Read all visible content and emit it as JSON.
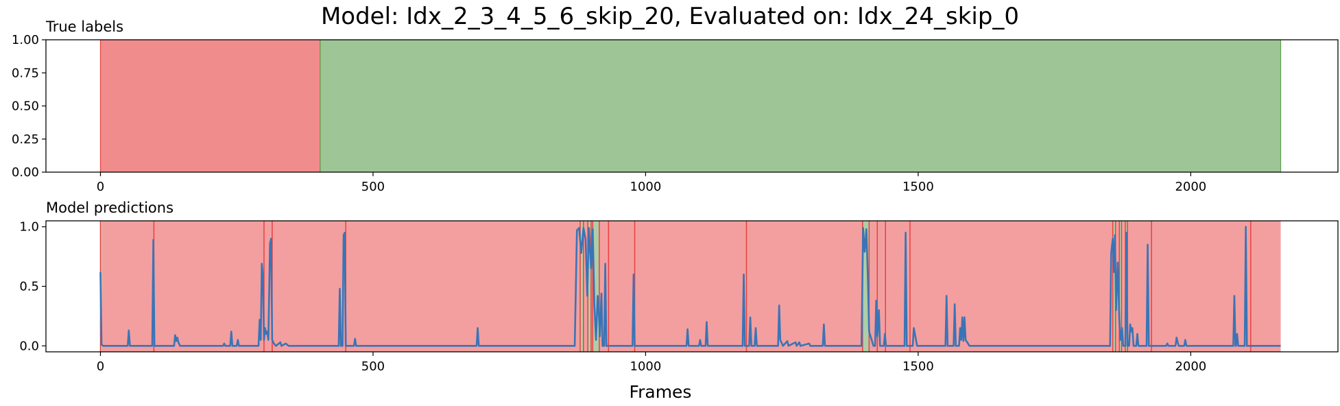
{
  "figure": {
    "title": "Model: Idx_2_3_4_5_6_skip_20, Evaluated on: Idx_24_skip_0",
    "xlabel": "Frames"
  },
  "colors": {
    "negative": "#e8403f",
    "positive": "#5d9e50",
    "line": "#3a74b6"
  },
  "chart_data": [
    {
      "type": "area",
      "title": "True labels",
      "xlim": [
        -100,
        2270
      ],
      "ylim": [
        0,
        1
      ],
      "xticks": [
        0,
        500,
        1000,
        1500,
        2000
      ],
      "yticks": [
        0.0,
        0.25,
        0.5,
        0.75,
        1.0
      ],
      "ytick_labels": [
        "0.00",
        "0.25",
        "0.50",
        "0.75",
        "1.00"
      ],
      "grid": false,
      "segments": [
        {
          "start": 0,
          "end": 403,
          "label": "negative"
        },
        {
          "start": 403,
          "end": 2165,
          "label": "positive"
        }
      ]
    },
    {
      "type": "line",
      "title": "Model predictions",
      "xlim": [
        -100,
        2270
      ],
      "ylim": [
        -0.05,
        1.05
      ],
      "xticks": [
        0,
        500,
        1000,
        1500,
        2000
      ],
      "yticks": [
        0.0,
        0.5,
        1.0
      ],
      "ytick_labels": [
        "0.0",
        "0.5",
        "1.0"
      ],
      "grid": false,
      "segments": [
        {
          "start": 0,
          "end": 3,
          "label": "positive"
        },
        {
          "start": 3,
          "end": 98,
          "label": "negative"
        },
        {
          "start": 98,
          "end": 300,
          "label": "negative"
        },
        {
          "start": 300,
          "end": 315,
          "label": "negative"
        },
        {
          "start": 315,
          "end": 450,
          "label": "negative"
        },
        {
          "start": 450,
          "end": 880,
          "label": "negative"
        },
        {
          "start": 880,
          "end": 886,
          "label": "positive"
        },
        {
          "start": 886,
          "end": 894,
          "label": "negative"
        },
        {
          "start": 894,
          "end": 900,
          "label": "positive"
        },
        {
          "start": 900,
          "end": 903,
          "label": "negative"
        },
        {
          "start": 903,
          "end": 915,
          "label": "positive"
        },
        {
          "start": 915,
          "end": 1398,
          "label": "negative"
        },
        {
          "start": 1398,
          "end": 1410,
          "label": "positive"
        },
        {
          "start": 1410,
          "end": 1857,
          "label": "negative"
        },
        {
          "start": 1857,
          "end": 1862,
          "label": "positive"
        },
        {
          "start": 1862,
          "end": 1869,
          "label": "negative"
        },
        {
          "start": 1869,
          "end": 1873,
          "label": "positive"
        },
        {
          "start": 1873,
          "end": 1880,
          "label": "negative"
        },
        {
          "start": 1880,
          "end": 1884,
          "label": "positive"
        },
        {
          "start": 1884,
          "end": 2165,
          "label": "negative"
        }
      ],
      "boundaries": [
        0,
        98,
        300,
        315,
        450,
        880,
        886,
        894,
        900,
        903,
        915,
        932,
        980,
        1185,
        1398,
        1410,
        1425,
        1440,
        1485,
        1857,
        1862,
        1869,
        1873,
        1880,
        1884,
        1928,
        2110
      ],
      "series": [
        {
          "points": [
            [
              0,
              0.62
            ],
            [
              2,
              0.01
            ],
            [
              5,
              0.0
            ],
            [
              50,
              0.0
            ],
            [
              52,
              0.13
            ],
            [
              54,
              0.0
            ],
            [
              95,
              0.0
            ],
            [
              97,
              0.89
            ],
            [
              99,
              0.0
            ],
            [
              135,
              0.0
            ],
            [
              137,
              0.09
            ],
            [
              139,
              0.04
            ],
            [
              141,
              0.07
            ],
            [
              143,
              0.03
            ],
            [
              146,
              0.0
            ],
            [
              225,
              0.0
            ],
            [
              227,
              0.02
            ],
            [
              229,
              0.0
            ],
            [
              238,
              0.0
            ],
            [
              240,
              0.12
            ],
            [
              242,
              0.0
            ],
            [
              250,
              0.0
            ],
            [
              252,
              0.05
            ],
            [
              254,
              0.0
            ],
            [
              290,
              0.0
            ],
            [
              292,
              0.22
            ],
            [
              294,
              0.05
            ],
            [
              296,
              0.69
            ],
            [
              298,
              0.58
            ],
            [
              300,
              0.05
            ],
            [
              302,
              0.15
            ],
            [
              304,
              0.1
            ],
            [
              306,
              0.12
            ],
            [
              308,
              0.05
            ],
            [
              311,
              0.86
            ],
            [
              313,
              0.9
            ],
            [
              315,
              0.05
            ],
            [
              318,
              0.02
            ],
            [
              322,
              0.0
            ],
            [
              330,
              0.03
            ],
            [
              332,
              0.0
            ],
            [
              340,
              0.02
            ],
            [
              345,
              0.0
            ],
            [
              437,
              0.0
            ],
            [
              439,
              0.48
            ],
            [
              441,
              0.0
            ],
            [
              444,
              0.0
            ],
            [
              446,
              0.93
            ],
            [
              448,
              0.95
            ],
            [
              450,
              0.0
            ],
            [
              465,
              0.0
            ],
            [
              467,
              0.06
            ],
            [
              469,
              0.0
            ],
            [
              690,
              0.0
            ],
            [
              692,
              0.15
            ],
            [
              694,
              0.0
            ],
            [
              870,
              0.0
            ],
            [
              874,
              0.97
            ],
            [
              878,
              0.99
            ],
            [
              882,
              0.78
            ],
            [
              886,
              0.99
            ],
            [
              890,
              0.89
            ],
            [
              893,
              0.42
            ],
            [
              896,
              0.99
            ],
            [
              900,
              0.65
            ],
            [
              903,
              0.98
            ],
            [
              906,
              0.35
            ],
            [
              909,
              0.05
            ],
            [
              912,
              0.42
            ],
            [
              914,
              0.3
            ],
            [
              916,
              0.08
            ],
            [
              919,
              0.44
            ],
            [
              921,
              0.0
            ],
            [
              924,
              0.0
            ],
            [
              926,
              0.69
            ],
            [
              928,
              0.0
            ],
            [
              976,
              0.0
            ],
            [
              978,
              0.6
            ],
            [
              980,
              0.0
            ],
            [
              1075,
              0.0
            ],
            [
              1077,
              0.14
            ],
            [
              1079,
              0.0
            ],
            [
              1098,
              0.0
            ],
            [
              1100,
              0.05
            ],
            [
              1102,
              0.0
            ],
            [
              1110,
              0.0
            ],
            [
              1112,
              0.2
            ],
            [
              1114,
              0.0
            ],
            [
              1178,
              0.0
            ],
            [
              1180,
              0.6
            ],
            [
              1182,
              0.0
            ],
            [
              1190,
              0.0
            ],
            [
              1192,
              0.24
            ],
            [
              1194,
              0.0
            ],
            [
              1200,
              0.0
            ],
            [
              1202,
              0.15
            ],
            [
              1204,
              0.0
            ],
            [
              1243,
              0.0
            ],
            [
              1245,
              0.34
            ],
            [
              1247,
              0.05
            ],
            [
              1252,
              0.0
            ],
            [
              1260,
              0.04
            ],
            [
              1262,
              0.0
            ],
            [
              1275,
              0.03
            ],
            [
              1277,
              0.0
            ],
            [
              1282,
              0.03
            ],
            [
              1284,
              0.0
            ],
            [
              1300,
              0.02
            ],
            [
              1302,
              0.0
            ],
            [
              1325,
              0.0
            ],
            [
              1327,
              0.18
            ],
            [
              1329,
              0.0
            ],
            [
              1396,
              0.0
            ],
            [
              1399,
              0.99
            ],
            [
              1402,
              0.79
            ],
            [
              1405,
              0.98
            ],
            [
              1408,
              0.52
            ],
            [
              1410,
              0.12
            ],
            [
              1414,
              0.06
            ],
            [
              1418,
              0.0
            ],
            [
              1421,
              0.0
            ],
            [
              1423,
              0.38
            ],
            [
              1425,
              0.08
            ],
            [
              1428,
              0.3
            ],
            [
              1430,
              0.0
            ],
            [
              1437,
              0.0
            ],
            [
              1439,
              0.1
            ],
            [
              1441,
              0.0
            ],
            [
              1475,
              0.0
            ],
            [
              1477,
              0.95
            ],
            [
              1479,
              0.0
            ],
            [
              1490,
              0.0
            ],
            [
              1492,
              0.15
            ],
            [
              1494,
              0.1
            ],
            [
              1496,
              0.05
            ],
            [
              1498,
              0.0
            ],
            [
              1550,
              0.0
            ],
            [
              1552,
              0.42
            ],
            [
              1554,
              0.0
            ],
            [
              1565,
              0.0
            ],
            [
              1567,
              0.35
            ],
            [
              1569,
              0.0
            ],
            [
              1575,
              0.0
            ],
            [
              1577,
              0.15
            ],
            [
              1579,
              0.05
            ],
            [
              1581,
              0.24
            ],
            [
              1583,
              0.04
            ],
            [
              1585,
              0.24
            ],
            [
              1587,
              0.05
            ],
            [
              1590,
              0.03
            ],
            [
              1594,
              0.0
            ],
            [
              1852,
              0.0
            ],
            [
              1854,
              0.78
            ],
            [
              1857,
              0.9
            ],
            [
              1859,
              0.62
            ],
            [
              1861,
              0.93
            ],
            [
              1863,
              0.3
            ],
            [
              1866,
              0.7
            ],
            [
              1869,
              0.22
            ],
            [
              1871,
              0.05
            ],
            [
              1874,
              0.15
            ],
            [
              1876,
              0.0
            ],
            [
              1880,
              0.0
            ],
            [
              1882,
              0.95
            ],
            [
              1884,
              0.0
            ],
            [
              1887,
              0.0
            ],
            [
              1889,
              0.18
            ],
            [
              1891,
              0.12
            ],
            [
              1893,
              0.15
            ],
            [
              1895,
              0.0
            ],
            [
              1900,
              0.0
            ],
            [
              1902,
              0.1
            ],
            [
              1904,
              0.0
            ],
            [
              1919,
              0.0
            ],
            [
              1921,
              0.85
            ],
            [
              1923,
              0.0
            ],
            [
              1955,
              0.0
            ],
            [
              1957,
              0.02
            ],
            [
              1959,
              0.0
            ],
            [
              1972,
              0.0
            ],
            [
              1974,
              0.07
            ],
            [
              1976,
              0.03
            ],
            [
              1978,
              0.0
            ],
            [
              1988,
              0.0
            ],
            [
              1990,
              0.05
            ],
            [
              1992,
              0.0
            ],
            [
              2078,
              0.0
            ],
            [
              2080,
              0.42
            ],
            [
              2082,
              0.0
            ],
            [
              2083,
              0.0
            ],
            [
              2085,
              0.1
            ],
            [
              2087,
              0.0
            ],
            [
              2099,
              0.0
            ],
            [
              2101,
              1.0
            ],
            [
              2103,
              0.0
            ],
            [
              2165,
              0.0
            ]
          ]
        }
      ]
    }
  ]
}
